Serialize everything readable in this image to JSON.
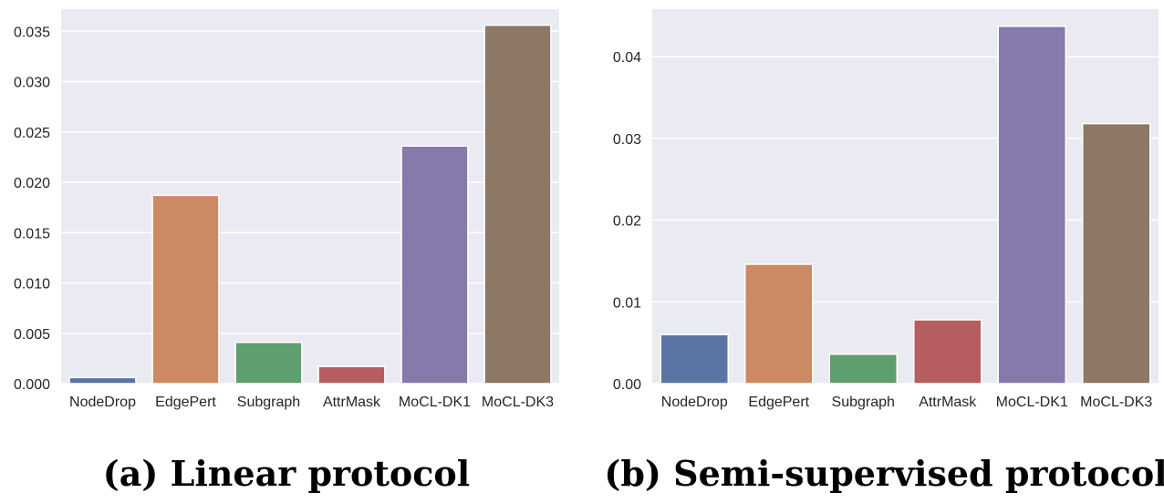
{
  "chart_data": [
    {
      "type": "bar",
      "title": "(a) Linear protocol",
      "xlabel": "",
      "ylabel": "",
      "categories": [
        "NodeDrop",
        "EdgePert",
        "Subgraph",
        "AttrMask",
        "MoCL-DK1",
        "MoCL-DK3"
      ],
      "values": [
        0.0006,
        0.0187,
        0.0041,
        0.0017,
        0.0236,
        0.0356
      ],
      "colors": [
        "#5975a4",
        "#cc8963",
        "#5f9e6e",
        "#b55d60",
        "#857aab",
        "#8d7866"
      ],
      "yticks": [
        0.0,
        0.005,
        0.01,
        0.015,
        0.02,
        0.025,
        0.03,
        0.035
      ],
      "ytick_labels": [
        "0.000",
        "0.005",
        "0.010",
        "0.015",
        "0.020",
        "0.025",
        "0.030",
        "0.035"
      ],
      "ylim": [
        0,
        0.0372
      ],
      "grid": true,
      "background": "#eaeaf2"
    },
    {
      "type": "bar",
      "title": "(b) Semi-supervised protocol",
      "xlabel": "",
      "ylabel": "",
      "categories": [
        "NodeDrop",
        "EdgePert",
        "Subgraph",
        "AttrMask",
        "MoCL-DK1",
        "MoCL-DK3"
      ],
      "values": [
        0.006,
        0.0146,
        0.0036,
        0.0078,
        0.0437,
        0.0318
      ],
      "colors": [
        "#5975a4",
        "#cc8963",
        "#5f9e6e",
        "#b55d60",
        "#857aab",
        "#8d7866"
      ],
      "yticks": [
        0.0,
        0.01,
        0.02,
        0.03,
        0.04
      ],
      "ytick_labels": [
        "0.00",
        "0.01",
        "0.02",
        "0.03",
        "0.04"
      ],
      "ylim": [
        0,
        0.0458
      ],
      "grid": true,
      "background": "#eaeaf2"
    }
  ]
}
